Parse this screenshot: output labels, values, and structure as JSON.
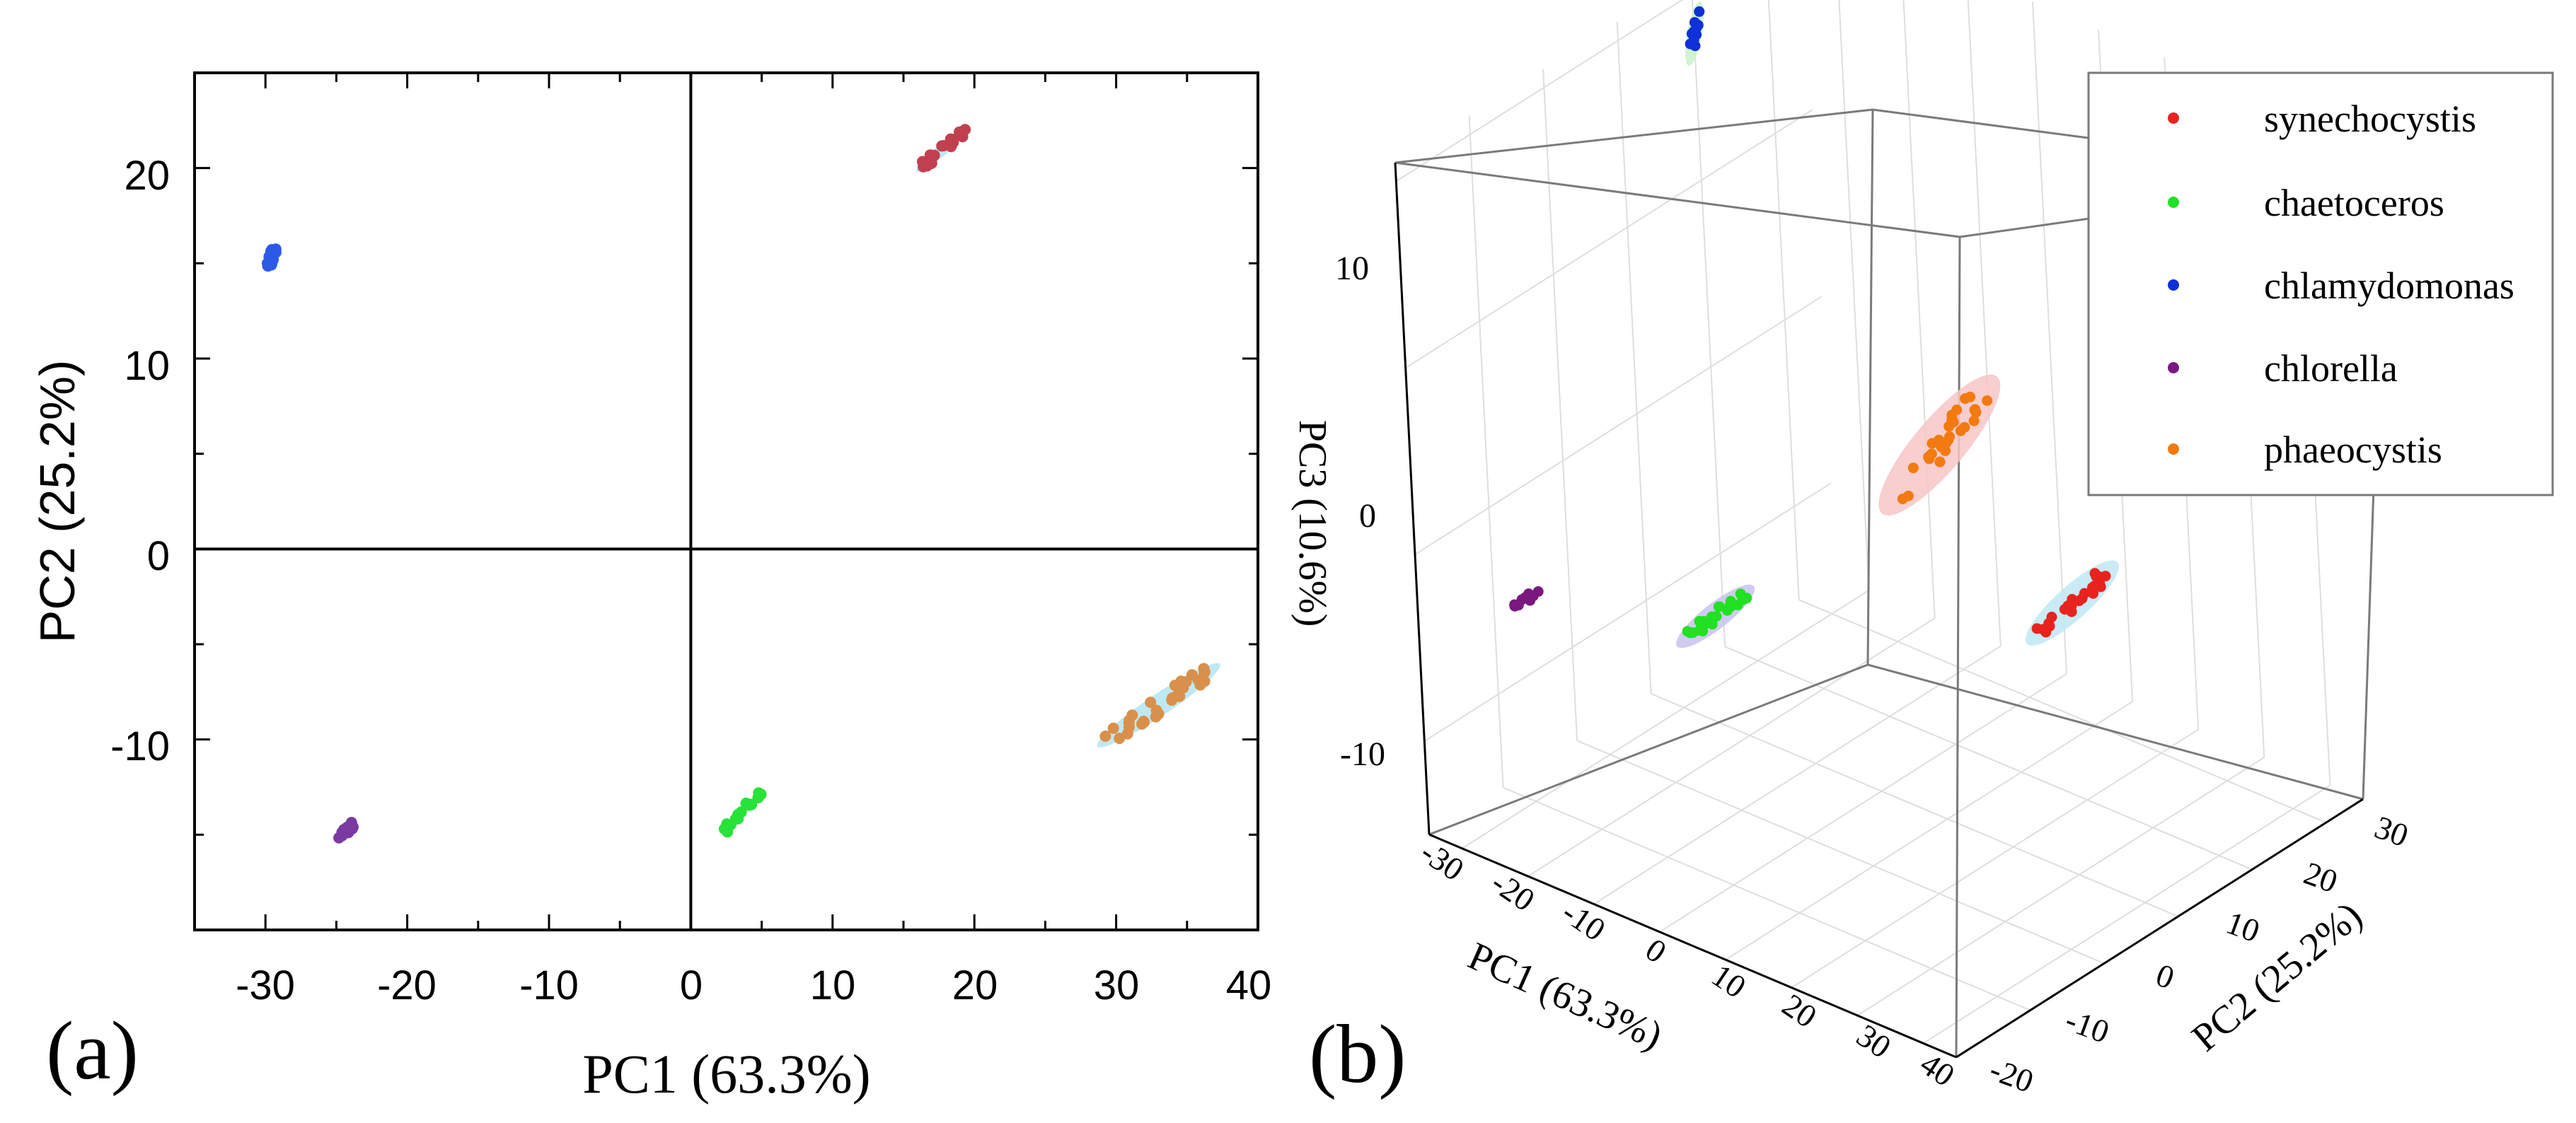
{
  "chart_data": [
    {
      "panel": "(a)",
      "type": "scatter",
      "xlabel": "PC1 (63.3%)",
      "ylabel": "PC2 (25.2%)",
      "xlim": [
        -35,
        40
      ],
      "ylim": [
        -20,
        25
      ],
      "xticks": [
        -30,
        -20,
        -10,
        0,
        10,
        20,
        30,
        40
      ],
      "yticks": [
        -10,
        0,
        10,
        20
      ],
      "series": [
        {
          "name": "synechocystis",
          "color": "#c0404f",
          "ellipse_color": "#bfe8f5",
          "center": [
            17.8,
            21.0
          ],
          "spread": [
            3.5,
            2.2
          ],
          "points": 22
        },
        {
          "name": "chlamydomonas",
          "color": "#2a5ae6",
          "center": [
            -29.6,
            15.2
          ],
          "spread": [
            0.5,
            1.3
          ],
          "points": 20
        },
        {
          "name": "chlorella",
          "color": "#7a3aa0",
          "center": [
            -24.3,
            -14.8
          ],
          "spread": [
            1.1,
            0.8
          ],
          "points": 14
        },
        {
          "name": "chaetoceros",
          "color": "#28e23a",
          "center": [
            3.6,
            -13.8
          ],
          "spread": [
            2.6,
            2.2
          ],
          "points": 16
        },
        {
          "name": "phaeocystis",
          "color": "#d9904a",
          "ellipse_color": "#bfe8f5",
          "center": [
            33.0,
            -8.2
          ],
          "spread": [
            8.0,
            4.0
          ],
          "points": 30
        }
      ]
    },
    {
      "panel": "(b)",
      "type": "scatter",
      "xlabel": "PC1 (63.3%)",
      "ylabel": "PC2 (25.2%)",
      "zlabel": "PC3 (10.6%)",
      "xticks": [
        -30,
        -20,
        -10,
        0,
        10,
        20,
        30,
        40
      ],
      "yticks": [
        -20,
        -10,
        0,
        10,
        20,
        30
      ],
      "zticks": [
        -10,
        0,
        10
      ],
      "legend": [
        "synechocystis",
        "chaetoceros",
        "chlamydomonas",
        "chlorella",
        "phaeocystis"
      ],
      "legend_position": "top-right",
      "series": [
        {
          "name": "synechocystis",
          "color": "#e8231e",
          "ellipse_color": "#bfe8f5",
          "center": [
            18,
            21,
            -5
          ],
          "points": 24
        },
        {
          "name": "chaetoceros",
          "color": "#22e022",
          "ellipse_color": "#c8c2ee",
          "center": [
            4,
            -14,
            1
          ],
          "points": 24
        },
        {
          "name": "chlamydomonas",
          "color": "#1030d8",
          "ellipse_color": "#c8f2c8",
          "center": [
            -29,
            15,
            20
          ],
          "points": 14
        },
        {
          "name": "chlorella",
          "color": "#7a1880",
          "center": [
            -24,
            -15,
            -2
          ],
          "points": 10
        },
        {
          "name": "phaeocystis",
          "color": "#f27a10",
          "ellipse_color": "#f7c6c6",
          "center": [
            33,
            -8,
            13
          ],
          "points": 30
        }
      ]
    }
  ],
  "panel_labels": {
    "a": "(a)",
    "b": "(b)"
  },
  "ticklabels": {
    "a_x": [
      "-30",
      "-20",
      "-10",
      "0",
      "10",
      "20",
      "30",
      "40"
    ],
    "a_y": [
      "-10",
      "0",
      "10",
      "20"
    ],
    "b_x": [
      "-30",
      "-20",
      "-10",
      "0",
      "10",
      "20",
      "30",
      "40"
    ],
    "b_y": [
      "-20",
      "-10",
      "0",
      "10",
      "20",
      "30"
    ],
    "b_z": [
      "-10",
      "0",
      "10"
    ]
  }
}
